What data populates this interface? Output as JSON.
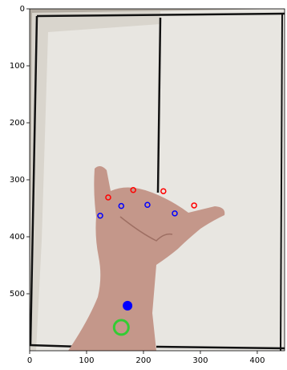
{
  "chart_data": {
    "type": "scatter",
    "xlim": [
      0,
      448
    ],
    "ylim": [
      600,
      0
    ],
    "xticks": [
      0,
      100,
      200,
      300,
      400
    ],
    "yticks": [
      0,
      100,
      200,
      300,
      400,
      500
    ],
    "series": [
      {
        "color": "#ff0000",
        "hollow": true,
        "size": 3,
        "x": [
          138,
          182,
          235,
          289
        ],
        "y": [
          331,
          318,
          320,
          345
        ]
      },
      {
        "color": "#0000ff",
        "hollow": true,
        "size": 3,
        "x": [
          124,
          161,
          207,
          255
        ],
        "y": [
          363,
          346,
          344,
          359
        ]
      },
      {
        "color": "#0000ff",
        "hollow": false,
        "size": 6,
        "x": [
          172
        ],
        "y": [
          521
        ]
      },
      {
        "color": "#33cc33",
        "hollow": true,
        "size": 9,
        "x": [
          161
        ],
        "y": [
          559
        ]
      }
    ]
  }
}
